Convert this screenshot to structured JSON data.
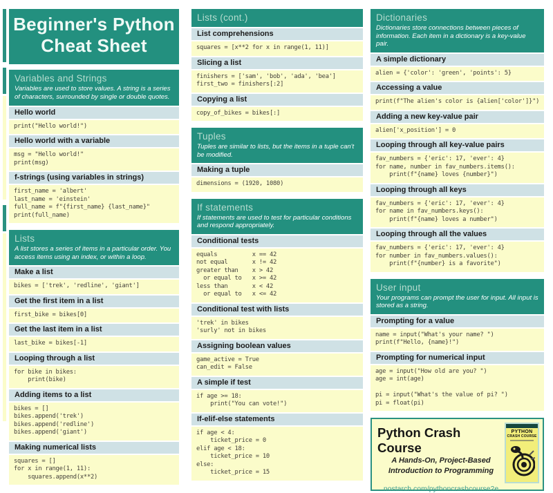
{
  "title": {
    "line1": "Beginner's Python",
    "line2": "Cheat Sheet"
  },
  "columns": [
    {
      "sections": [
        {
          "id": "variables-and-strings",
          "title": "Variables and Strings",
          "description": "Variables are used to store values. A string is a series of characters, surrounded by single or double quotes.",
          "items": [
            {
              "label": "Hello world",
              "code": "print(\"Hello world!\")"
            },
            {
              "label": "Hello world with a variable",
              "code": "msg = \"Hello world!\"\nprint(msg)"
            },
            {
              "label": "f-strings (using variables in strings)",
              "code": "first_name = 'albert'\nlast_name = 'einstein'\nfull_name = f\"{first_name} {last_name}\"\nprint(full_name)"
            }
          ]
        },
        {
          "id": "lists",
          "title": "Lists",
          "description": "A list stores a series of items in a particular order. You access items using an index, or within a loop.",
          "items": [
            {
              "label": "Make a list",
              "code": "bikes = ['trek', 'redline', 'giant']"
            },
            {
              "label": "Get the first item in a list",
              "code": "first_bike = bikes[0]"
            },
            {
              "label": "Get the last item in a list",
              "code": "last_bike = bikes[-1]"
            },
            {
              "label": "Looping through a list",
              "code": "for bike in bikes:\n    print(bike)"
            },
            {
              "label": "Adding items to a list",
              "code": "bikes = []\nbikes.append('trek')\nbikes.append('redline')\nbikes.append('giant')"
            },
            {
              "label": "Making numerical lists",
              "code": "squares = []\nfor x in range(1, 11):\n    squares.append(x**2)"
            }
          ]
        }
      ]
    },
    {
      "sections": [
        {
          "id": "lists-cont",
          "title": "Lists (cont.)",
          "description": null,
          "items": [
            {
              "label": "List comprehensions",
              "code": "squares = [x**2 for x in range(1, 11)]"
            },
            {
              "label": "Slicing a list",
              "code": "finishers = ['sam', 'bob', 'ada', 'bea']\nfirst_two = finishers[:2]"
            },
            {
              "label": "Copying a list",
              "code": "copy_of_bikes = bikes[:]"
            }
          ]
        },
        {
          "id": "tuples",
          "title": "Tuples",
          "description": "Tuples are similar to lists, but the items in a tuple can't be modified.",
          "items": [
            {
              "label": "Making a tuple",
              "code": "dimensions = (1920, 1080)"
            }
          ]
        },
        {
          "id": "if-statements",
          "title": "If statements",
          "description": "If statements are used to test for particular conditions and respond appropriately.",
          "items": [
            {
              "label": "Conditional tests",
              "code": "equals          x == 42\nnot equal       x != 42\ngreater than    x > 42\n  or equal to   x >= 42\nless than       x < 42\n  or equal to   x <= 42"
            },
            {
              "label": "Conditional test with lists",
              "code": "'trek' in bikes\n'surly' not in bikes"
            },
            {
              "label": "Assigning boolean values",
              "code": "game_active = True\ncan_edit = False"
            },
            {
              "label": "A simple if test",
              "code": "if age >= 18:\n    print(\"You can vote!\")"
            },
            {
              "label": "If-elif-else statements",
              "code": "if age < 4:\n    ticket_price = 0\nelif age < 18:\n    ticket_price = 10\nelse:\n    ticket_price = 15"
            }
          ]
        }
      ]
    },
    {
      "sections": [
        {
          "id": "dictionaries",
          "title": "Dictionaries",
          "description": "Dictionaries store connections between pieces of information. Each item in a dictionary is a key-value pair.",
          "items": [
            {
              "label": "A simple dictionary",
              "code": "alien = {'color': 'green', 'points': 5}"
            },
            {
              "label": "Accessing a value",
              "code": "print(f\"The alien's color is {alien['color']}\")"
            },
            {
              "label": "Adding a new key-value pair",
              "code": "alien['x_position'] = 0"
            },
            {
              "label": "Looping through all key-value pairs",
              "code": "fav_numbers = {'eric': 17, 'ever': 4}\nfor name, number in fav_numbers.items():\n    print(f\"{name} loves {number}\")"
            },
            {
              "label": "Looping through all keys",
              "code": "fav_numbers = {'eric': 17, 'ever': 4}\nfor name in fav_numbers.keys():\n    print(f\"{name} loves a number\")"
            },
            {
              "label": "Looping through all the values",
              "code": "fav_numbers = {'eric': 17, 'ever': 4}\nfor number in fav_numbers.values():\n    print(f\"{number} is a favorite\")"
            }
          ]
        },
        {
          "id": "user-input",
          "title": "User input",
          "description": "Your programs can prompt the user for input. All input is stored as a string.",
          "items": [
            {
              "label": "Prompting for a value",
              "code": "name = input(\"What's your name? \")\nprint(f\"Hello, {name}!\")"
            },
            {
              "label": "Prompting for numerical input",
              "code": "age = input(\"How old are you? \")\nage = int(age)\n\npi = input(\"What's the value of pi? \")\npi = float(pi)"
            }
          ]
        }
      ]
    }
  ],
  "footer": {
    "title": "Python Crash Course",
    "subtitle_line1": "A Hands-On, Project-Based",
    "subtitle_line2": "Introduction to Programming",
    "link": "nostarch.com/pythoncrashcourse2e",
    "book": {
      "line1": "PYTHON",
      "line2": "CRASH COURSE"
    }
  },
  "colors": {
    "teal": "#23907f",
    "section_header_text": "#b7dccf",
    "item_bar_bg": "#cfe1e5",
    "code_bg": "#fbfcca",
    "link": "#3a9c8c",
    "book_cover_bg": "#f2ee7a"
  }
}
